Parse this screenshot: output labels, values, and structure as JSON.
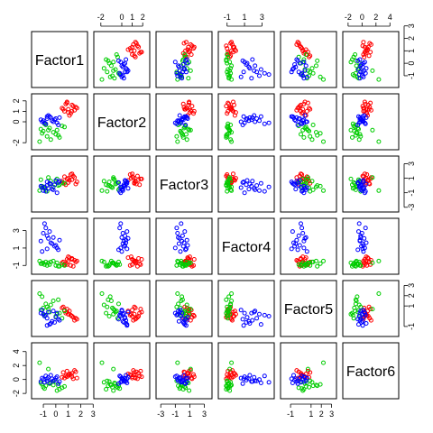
{
  "chart_data": {
    "type": "scatter",
    "subtype": "scatterplot-matrix",
    "variables": [
      "Factor1",
      "Factor2",
      "Factor3",
      "Factor4",
      "Factor5",
      "Factor6"
    ],
    "series_colors": [
      "#ff0000",
      "#00cc00",
      "#0000ff"
    ],
    "ranges": [
      [
        -1.8,
        2.4
      ],
      [
        -2.5,
        2.5
      ],
      [
        -3.4,
        3.8
      ],
      [
        -1.8,
        4.2
      ],
      [
        -1.8,
        3.3
      ],
      [
        -2.5,
        5.0
      ]
    ],
    "tick_labels": [
      [
        "-1",
        "0",
        "1",
        "2",
        "3"
      ],
      [
        "-2",
        "0",
        "1",
        "2"
      ],
      [
        "-3",
        "-1",
        "1",
        "3"
      ],
      [
        "-1",
        "1",
        "3"
      ],
      [
        "-1",
        "1",
        "2",
        "3"
      ],
      [
        "-2",
        "0",
        "2",
        "4"
      ]
    ],
    "tick_values": [
      [
        -1,
        0,
        1,
        2,
        3
      ],
      [
        -2,
        0,
        1,
        2
      ],
      [
        -3,
        -1,
        1,
        3
      ],
      [
        -1,
        1,
        3
      ],
      [
        -1,
        1,
        2,
        3
      ],
      [
        -2,
        0,
        2,
        4
      ]
    ],
    "groups": [
      {
        "color": "#ff0000",
        "points": [
          [
            1.0,
            1.2,
            0.4,
            -0.5,
            0.2,
            0.6
          ],
          [
            1.3,
            1.6,
            0.8,
            -0.2,
            0.0,
            0.9
          ],
          [
            0.7,
            1.0,
            1.2,
            -0.9,
            0.6,
            0.2
          ],
          [
            1.6,
            1.4,
            0.2,
            -0.6,
            -0.2,
            1.1
          ],
          [
            0.9,
            1.9,
            0.9,
            -0.3,
            0.4,
            0.4
          ],
          [
            1.2,
            0.8,
            1.5,
            -1.0,
            0.1,
            0.7
          ],
          [
            0.5,
            1.3,
            0.6,
            -0.7,
            0.8,
            0.3
          ],
          [
            1.5,
            1.1,
            1.1,
            -0.4,
            -0.4,
            1.3
          ],
          [
            0.8,
            1.7,
            0.1,
            -0.8,
            0.3,
            0.5
          ],
          [
            1.1,
            0.6,
            0.7,
            -0.1,
            0.5,
            0.8
          ],
          [
            1.4,
            1.5,
            1.3,
            -1.1,
            -0.1,
            0.1
          ],
          [
            0.6,
            1.2,
            0.3,
            -0.6,
            0.9,
            1.0
          ],
          [
            1.0,
            0.9,
            1.0,
            0.0,
            0.2,
            0.6
          ],
          [
            1.7,
            1.3,
            0.5,
            -0.5,
            -0.3,
            0.2
          ],
          [
            0.9,
            1.8,
            0.9,
            -0.9,
            0.7,
            1.2
          ],
          [
            1.3,
            1.0,
            1.6,
            -0.3,
            0.0,
            0.4
          ]
        ]
      },
      {
        "color": "#00cc00",
        "points": [
          [
            -0.5,
            -0.6,
            0.2,
            -0.9,
            0.4,
            -0.6
          ],
          [
            -1.0,
            -0.9,
            -0.3,
            -0.7,
            0.8,
            -1.1
          ],
          [
            0.0,
            -1.2,
            0.5,
            -1.0,
            0.0,
            -0.3
          ],
          [
            -0.8,
            -0.3,
            -0.6,
            -0.6,
            1.2,
            -0.9
          ],
          [
            0.3,
            -1.5,
            0.1,
            -1.1,
            0.3,
            -1.4
          ],
          [
            -1.2,
            -0.7,
            0.8,
            -0.8,
            0.6,
            -0.5
          ],
          [
            -0.2,
            -1.0,
            -0.2,
            -0.5,
            1.5,
            -0.8
          ],
          [
            0.5,
            -0.4,
            0.4,
            -0.9,
            -0.2,
            -1.2
          ],
          [
            -0.7,
            -1.4,
            -0.8,
            -1.0,
            0.9,
            -0.2
          ],
          [
            0.1,
            -0.8,
            0.9,
            -0.7,
            0.2,
            -1.6
          ],
          [
            -1.1,
            -1.1,
            -0.1,
            -0.8,
            1.9,
            -0.7
          ],
          [
            0.7,
            -0.5,
            0.3,
            -1.0,
            0.5,
            -1.0
          ],
          [
            -0.4,
            -1.7,
            0.6,
            -0.6,
            1.1,
            -0.4
          ],
          [
            -0.9,
            -0.2,
            -0.4,
            -0.9,
            0.1,
            -1.3
          ],
          [
            0.2,
            -1.3,
            0.0,
            -1.1,
            1.6,
            -0.9
          ],
          [
            -0.6,
            -0.8,
            1.1,
            -0.7,
            0.7,
            1.5
          ],
          [
            -1.3,
            -1.9,
            -0.7,
            -0.5,
            2.2,
            2.4
          ]
        ]
      },
      {
        "color": "#0000ff",
        "points": [
          [
            -0.3,
            0.1,
            -0.5,
            1.5,
            -0.5,
            0.1
          ],
          [
            -0.7,
            0.3,
            0.0,
            2.4,
            -0.2,
            -0.2
          ],
          [
            0.1,
            -0.1,
            -1.0,
            1.0,
            0.3,
            0.4
          ],
          [
            -0.5,
            0.5,
            0.3,
            2.9,
            -0.8,
            -0.5
          ],
          [
            -1.1,
            0.0,
            -0.3,
            0.6,
            0.6,
            0.2
          ],
          [
            0.3,
            0.4,
            0.6,
            1.9,
            -0.4,
            -0.3
          ],
          [
            -0.8,
            -0.2,
            -0.8,
            3.3,
            0.1,
            0.5
          ],
          [
            -0.1,
            0.2,
            0.1,
            1.2,
            -0.6,
            -0.1
          ],
          [
            -0.6,
            0.6,
            -0.4,
            2.1,
            0.4,
            0.3
          ],
          [
            0.2,
            -0.3,
            0.4,
            0.8,
            -0.3,
            -0.6
          ],
          [
            -1.0,
            0.1,
            -0.7,
            2.7,
            0.2,
            0.0
          ],
          [
            -0.4,
            0.4,
            0.2,
            1.6,
            -0.7,
            0.6
          ],
          [
            -0.9,
            -0.1,
            -0.2,
            3.8,
            0.0,
            -0.4
          ],
          [
            0.0,
            0.3,
            0.7,
            1.3,
            -0.1,
            0.2
          ],
          [
            -0.2,
            0.0,
            -0.6,
            2.2,
            0.5,
            -0.2
          ],
          [
            -0.7,
            0.5,
            0.5,
            0.9,
            -0.9,
            0.1
          ],
          [
            -1.2,
            0.2,
            -0.1,
            1.8,
            0.3,
            -0.3
          ]
        ]
      }
    ]
  }
}
